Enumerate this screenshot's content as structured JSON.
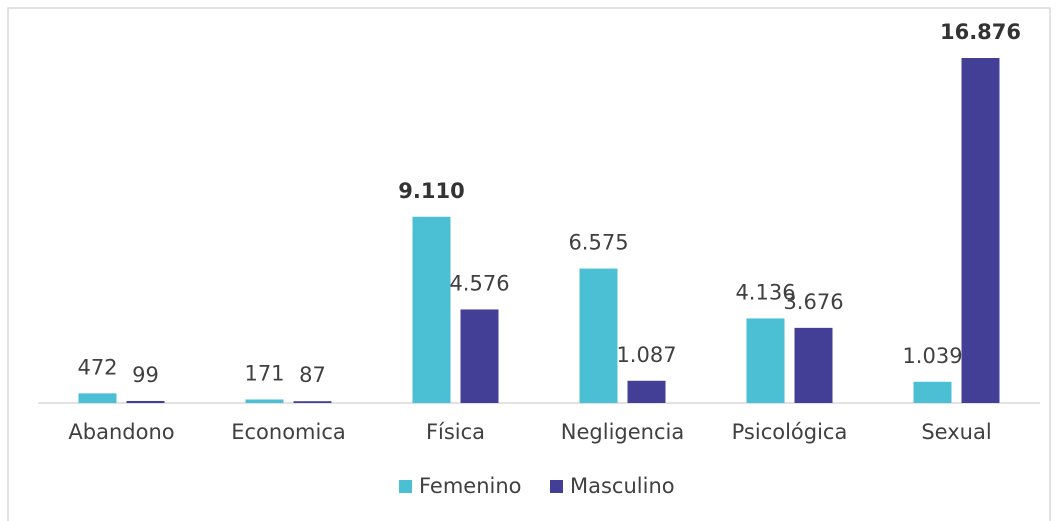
{
  "chart_data": {
    "type": "bar",
    "categories": [
      "Abandono",
      "Economica",
      "Física",
      "Negligencia",
      "Psicológica",
      "Sexual"
    ],
    "series": [
      {
        "name": "Femenino",
        "color": "#4bbfd4",
        "values": [
          472,
          171,
          9110,
          6575,
          4136,
          1039
        ],
        "value_labels": [
          "472",
          "171",
          "9.110",
          "6.575",
          "4.136",
          "1.039"
        ]
      },
      {
        "name": "Masculino",
        "color": "#433f97",
        "values": [
          99,
          87,
          4576,
          1087,
          3676,
          16876
        ],
        "value_labels": [
          "99",
          "87",
          "4.576",
          "1.087",
          "3.676",
          "16.876"
        ]
      }
    ]
  }
}
